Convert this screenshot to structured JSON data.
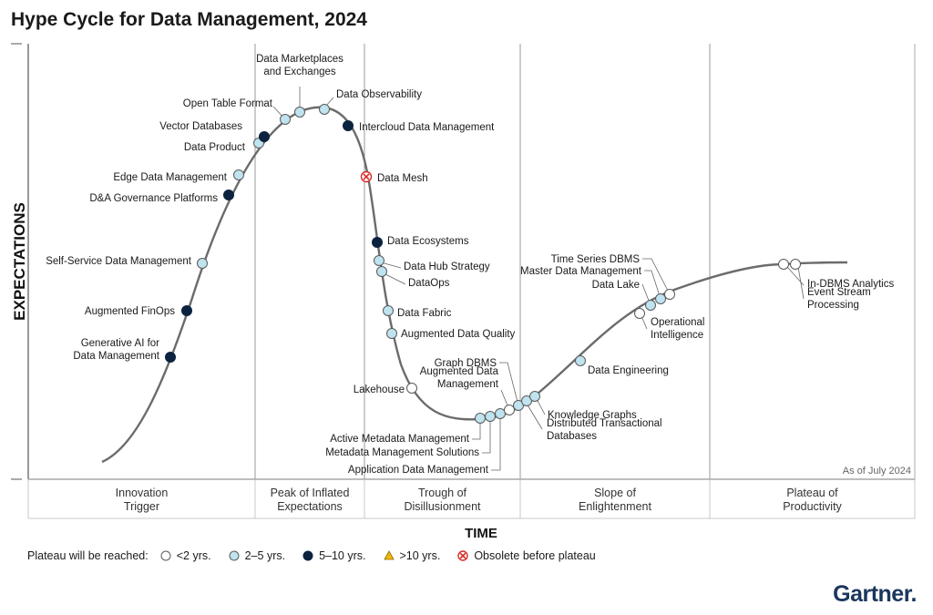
{
  "chart_data": {
    "type": "scatter",
    "title": "Hype Cycle for Data Management, 2024",
    "xlabel": "TIME",
    "ylabel": "EXPECTATIONS",
    "note": "As of July 2024",
    "phases": [
      "Innovation\nTrigger",
      "Peak of Inflated\nExpectations",
      "Trough of\nDisillusionment",
      "Slope of\nEnlightenment",
      "Plateau of\nProductivity"
    ],
    "legend_title": "Plateau will be reached:",
    "legend": [
      {
        "key": "lt2",
        "label": "<2 yrs."
      },
      {
        "key": "2to5",
        "label": "2–5 yrs."
      },
      {
        "key": "5to10",
        "label": "5–10 yrs."
      },
      {
        "key": "gt10",
        "label": ">10 yrs."
      },
      {
        "key": "obsolete",
        "label": "Obsolete before plateau"
      }
    ],
    "technologies": [
      {
        "name": "Generative AI for\nData Management",
        "category": "5to10"
      },
      {
        "name": "Augmented FinOps",
        "category": "5to10"
      },
      {
        "name": "Self-Service Data Management",
        "category": "2to5"
      },
      {
        "name": "D&A Governance Platforms",
        "category": "5to10"
      },
      {
        "name": "Edge Data Management",
        "category": "2to5"
      },
      {
        "name": "Data Product",
        "category": "2to5"
      },
      {
        "name": "Vector Databases",
        "category": "5to10"
      },
      {
        "name": "Open Table Format",
        "category": "2to5"
      },
      {
        "name": "Data Marketplaces\nand Exchanges",
        "category": "2to5"
      },
      {
        "name": "Data Observability",
        "category": "2to5"
      },
      {
        "name": "Intercloud Data Management",
        "category": "5to10"
      },
      {
        "name": "Data Mesh",
        "category": "obsolete"
      },
      {
        "name": "Data Ecosystems",
        "category": "5to10"
      },
      {
        "name": "Data Hub Strategy",
        "category": "2to5"
      },
      {
        "name": "DataOps",
        "category": "2to5"
      },
      {
        "name": "Data Fabric",
        "category": "2to5"
      },
      {
        "name": "Augmented Data Quality",
        "category": "2to5"
      },
      {
        "name": "Lakehouse",
        "category": "lt2"
      },
      {
        "name": "Active Metadata Management",
        "category": "2to5"
      },
      {
        "name": "Metadata Management Solutions",
        "category": "2to5"
      },
      {
        "name": "Application Data Management",
        "category": "2to5"
      },
      {
        "name": "Augmented Data\nManagement",
        "category": "lt2"
      },
      {
        "name": "Graph DBMS",
        "category": "2to5"
      },
      {
        "name": "Distributed Transactional\nDatabases",
        "category": "2to5"
      },
      {
        "name": "Knowledge Graphs",
        "category": "2to5"
      },
      {
        "name": "Data Engineering",
        "category": "2to5"
      },
      {
        "name": "Operational\nIntelligence",
        "category": "lt2"
      },
      {
        "name": "Data Lake",
        "category": "2to5"
      },
      {
        "name": "Master Data Management",
        "category": "2to5"
      },
      {
        "name": "Time Series DBMS",
        "category": "lt2"
      },
      {
        "name": "In-DBMS Analytics",
        "category": "lt2"
      },
      {
        "name": "Event Stream\nProcessing",
        "category": "lt2"
      }
    ]
  },
  "colors": {
    "lt2": "#ffffff",
    "2to5": "#bfe3ef",
    "5to10": "#0c2340",
    "gt10": "#f2b705",
    "obsolete": "#d62b2b",
    "curve": "#6b6b6b",
    "brand": "#1b365d"
  },
  "brand": "Gartner."
}
